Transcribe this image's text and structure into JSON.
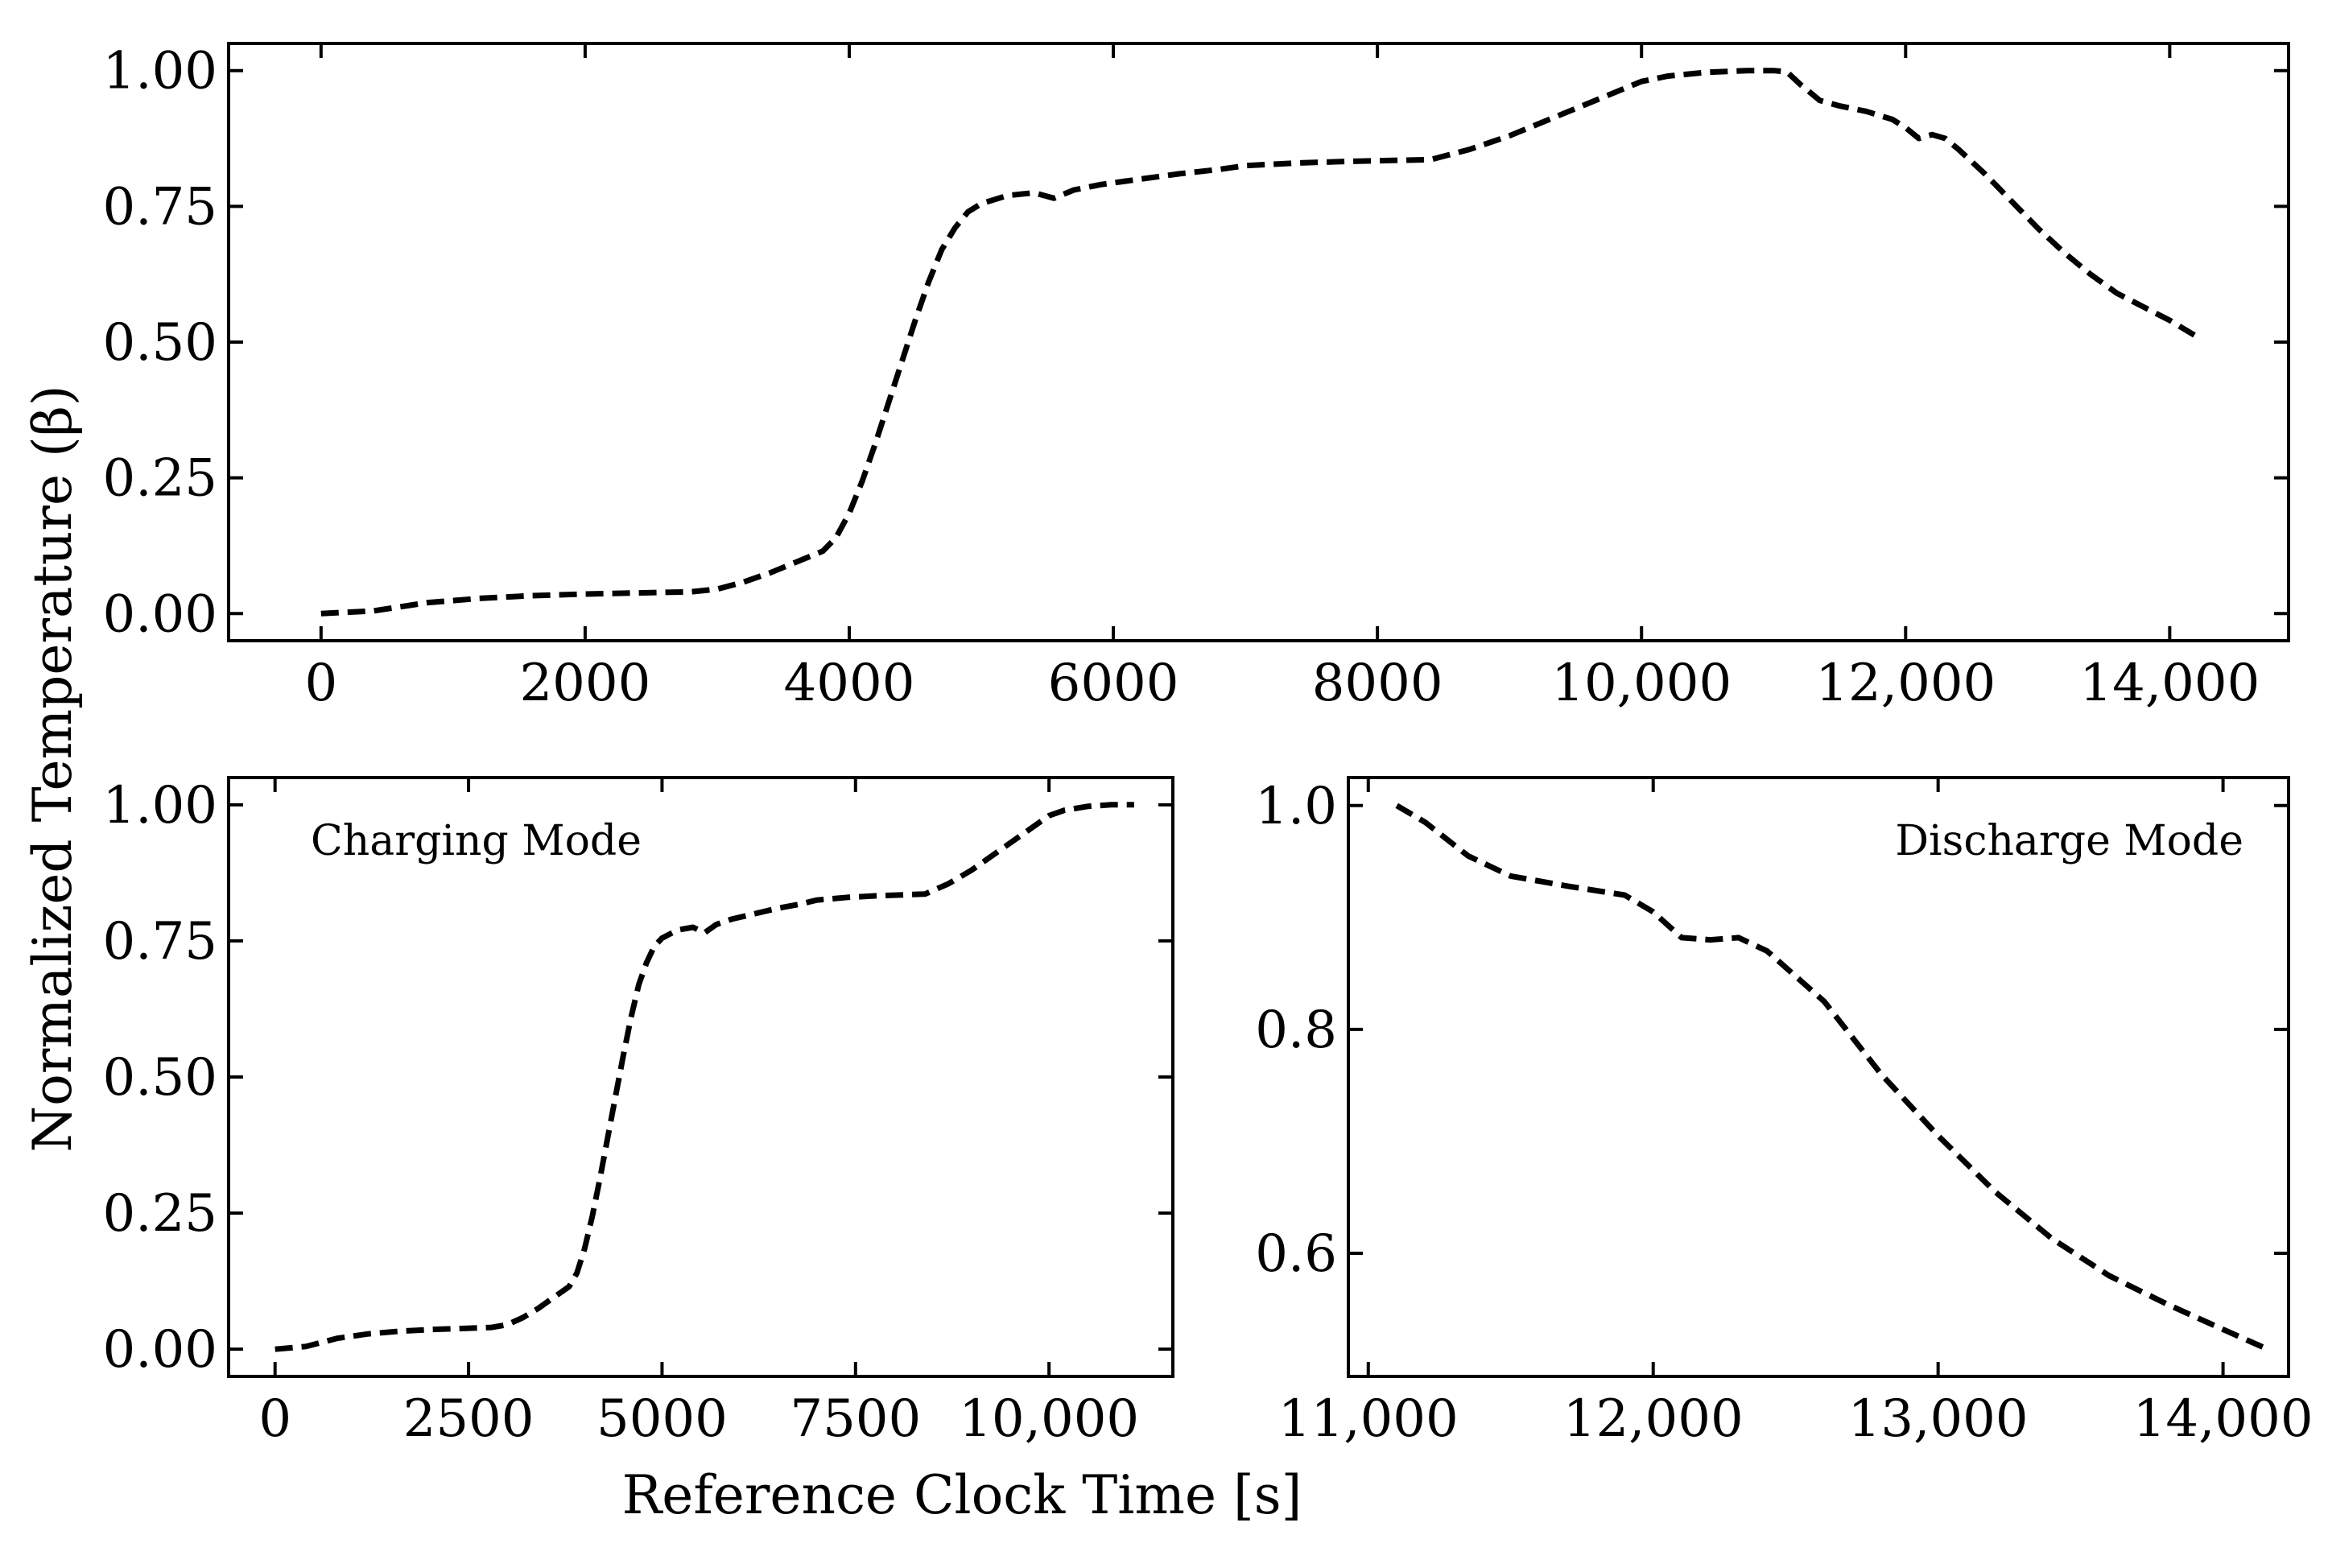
{
  "figure": {
    "ylabel": "Normalized Temperature (β)",
    "xlabel": "Reference Clock Time [s]"
  },
  "chart_data": [
    {
      "type": "line",
      "title": "",
      "xlabel": "",
      "ylabel": "Normalized Temperature (β)",
      "xlim": [
        -700,
        14900
      ],
      "ylim": [
        -0.05,
        1.05
      ],
      "xticks": [
        0,
        2000,
        4000,
        6000,
        8000,
        10000,
        12000,
        14000
      ],
      "xtick_labels": [
        "0",
        "2000",
        "4000",
        "6000",
        "8000",
        "10,000",
        "12,000",
        "14,000"
      ],
      "yticks": [
        0.0,
        0.25,
        0.5,
        0.75,
        1.0
      ],
      "ytick_labels": [
        "0.00",
        "0.25",
        "0.50",
        "0.75",
        "1.00"
      ],
      "annotation": "",
      "line_style": "dashed",
      "color": "#000000",
      "x": [
        0,
        400,
        800,
        1200,
        1600,
        2000,
        2400,
        2800,
        3000,
        3200,
        3400,
        3600,
        3800,
        3900,
        4000,
        4100,
        4200,
        4300,
        4400,
        4500,
        4600,
        4700,
        4800,
        4900,
        5000,
        5200,
        5400,
        5550,
        5700,
        5900,
        6200,
        6500,
        6800,
        7000,
        7400,
        7800,
        8200,
        8400,
        8700,
        9000,
        9400,
        9800,
        10000,
        10200,
        10500,
        10800,
        11000,
        11100,
        11200,
        11350,
        11500,
        11700,
        11900,
        12000,
        12100,
        12200,
        12300,
        12400,
        12600,
        12800,
        13000,
        13200,
        13400,
        13600,
        13800,
        14000,
        14240
      ],
      "values": [
        0.0,
        0.005,
        0.02,
        0.028,
        0.033,
        0.036,
        0.038,
        0.04,
        0.045,
        0.058,
        0.075,
        0.095,
        0.115,
        0.14,
        0.185,
        0.245,
        0.315,
        0.39,
        0.465,
        0.54,
        0.61,
        0.67,
        0.71,
        0.74,
        0.755,
        0.77,
        0.775,
        0.765,
        0.78,
        0.79,
        0.8,
        0.81,
        0.818,
        0.825,
        0.83,
        0.833,
        0.835,
        0.836,
        0.855,
        0.88,
        0.92,
        0.96,
        0.98,
        0.99,
        0.997,
        1.0,
        1.0,
        0.998,
        0.975,
        0.945,
        0.935,
        0.925,
        0.91,
        0.895,
        0.875,
        0.882,
        0.875,
        0.855,
        0.81,
        0.76,
        0.71,
        0.665,
        0.625,
        0.59,
        0.565,
        0.54,
        0.505
      ]
    },
    {
      "type": "line",
      "title": "",
      "xlabel": "",
      "ylabel": "",
      "xlim": [
        -600,
        11600
      ],
      "ylim": [
        -0.05,
        1.05
      ],
      "xticks": [
        0,
        2500,
        5000,
        7500,
        10000
      ],
      "xtick_labels": [
        "0",
        "2500",
        "5000",
        "7500",
        "10,000"
      ],
      "yticks": [
        0.0,
        0.25,
        0.5,
        0.75,
        1.0
      ],
      "ytick_labels": [
        "0.00",
        "0.25",
        "0.50",
        "0.75",
        "1.00"
      ],
      "annotation": "Charging Mode",
      "line_style": "dashed",
      "color": "#000000",
      "x": [
        0,
        400,
        800,
        1200,
        1600,
        2000,
        2400,
        2800,
        3000,
        3200,
        3400,
        3600,
        3800,
        3900,
        4000,
        4100,
        4200,
        4300,
        4400,
        4500,
        4600,
        4700,
        4800,
        4900,
        5000,
        5200,
        5400,
        5550,
        5700,
        5900,
        6200,
        6500,
        6800,
        7000,
        7400,
        7800,
        8200,
        8400,
        8700,
        9000,
        9400,
        9800,
        10000,
        10200,
        10500,
        10800,
        11100
      ],
      "values": [
        0.0,
        0.005,
        0.02,
        0.028,
        0.033,
        0.036,
        0.038,
        0.04,
        0.045,
        0.058,
        0.075,
        0.095,
        0.115,
        0.14,
        0.185,
        0.245,
        0.315,
        0.39,
        0.465,
        0.54,
        0.61,
        0.67,
        0.71,
        0.74,
        0.755,
        0.77,
        0.775,
        0.765,
        0.78,
        0.79,
        0.8,
        0.81,
        0.818,
        0.825,
        0.83,
        0.833,
        0.835,
        0.836,
        0.855,
        0.88,
        0.92,
        0.96,
        0.98,
        0.99,
        0.997,
        1.0,
        1.0
      ]
    },
    {
      "type": "line",
      "title": "",
      "xlabel": "",
      "ylabel": "",
      "xlim": [
        10930,
        14230
      ],
      "ylim": [
        0.49,
        1.025
      ],
      "xticks": [
        11000,
        12000,
        13000,
        14000
      ],
      "xtick_labels": [
        "11,000",
        "12,000",
        "13,000",
        "14,000"
      ],
      "yticks": [
        0.6,
        0.8,
        1.0
      ],
      "ytick_labels": [
        "0.6",
        "0.8",
        "1.0"
      ],
      "annotation": "Discharge Mode",
      "line_style": "dashed",
      "color": "#000000",
      "x": [
        11100,
        11200,
        11350,
        11500,
        11700,
        11900,
        12000,
        12100,
        12200,
        12300,
        12400,
        12600,
        12800,
        13000,
        13200,
        13400,
        13600,
        13800,
        14000,
        14150
      ],
      "values": [
        1.0,
        0.985,
        0.955,
        0.937,
        0.928,
        0.92,
        0.905,
        0.882,
        0.88,
        0.882,
        0.87,
        0.825,
        0.76,
        0.705,
        0.655,
        0.613,
        0.58,
        0.555,
        0.532,
        0.515
      ]
    }
  ]
}
